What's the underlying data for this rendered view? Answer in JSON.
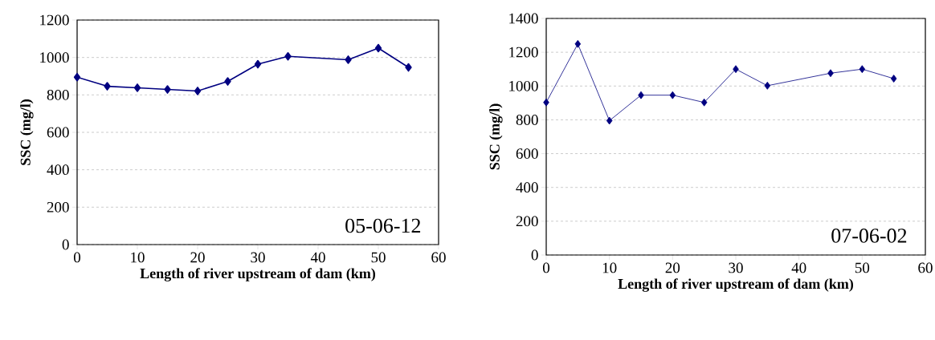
{
  "chart_data": [
    {
      "type": "line",
      "xlabel": "Length of river upstream of dam (km)",
      "ylabel": "SSC (mg/l)",
      "annotations": [
        "05-06-12"
      ],
      "x": [
        0,
        5,
        10,
        15,
        20,
        25,
        30,
        35,
        45,
        50,
        55
      ],
      "series": [
        {
          "color": "#000080",
          "values": [
            895,
            846,
            838,
            829,
            821,
            872,
            964,
            1006,
            988,
            1050,
            947
          ]
        }
      ],
      "xlim": [
        0,
        60
      ],
      "xticks": [
        0,
        10,
        20,
        30,
        40,
        50,
        60
      ],
      "ylim": [
        0,
        1200
      ],
      "yticks": [
        0,
        200,
        400,
        600,
        800,
        1000,
        1200
      ],
      "grid": "y",
      "marker": "diamond",
      "line_style": "solid"
    },
    {
      "type": "line",
      "xlabel": "Length of river upstream of dam (km)",
      "ylabel": "SSC (mg/l)",
      "annotations": [
        "07-06-02"
      ],
      "x": [
        0,
        5,
        10,
        15,
        20,
        25,
        30,
        35,
        45,
        50,
        55
      ],
      "series": [
        {
          "color": "#000080",
          "values": [
            903,
            1249,
            795,
            946,
            946,
            903,
            1100,
            1002,
            1076,
            1100,
            1044
          ]
        }
      ],
      "xlim": [
        0,
        60
      ],
      "xticks": [
        0,
        10,
        20,
        30,
        40,
        50,
        60
      ],
      "ylim": [
        0,
        1400
      ],
      "yticks": [
        0,
        200,
        400,
        600,
        800,
        1000,
        1200,
        1400
      ],
      "grid": "y",
      "marker": "diamond",
      "line_style": "solid"
    }
  ]
}
